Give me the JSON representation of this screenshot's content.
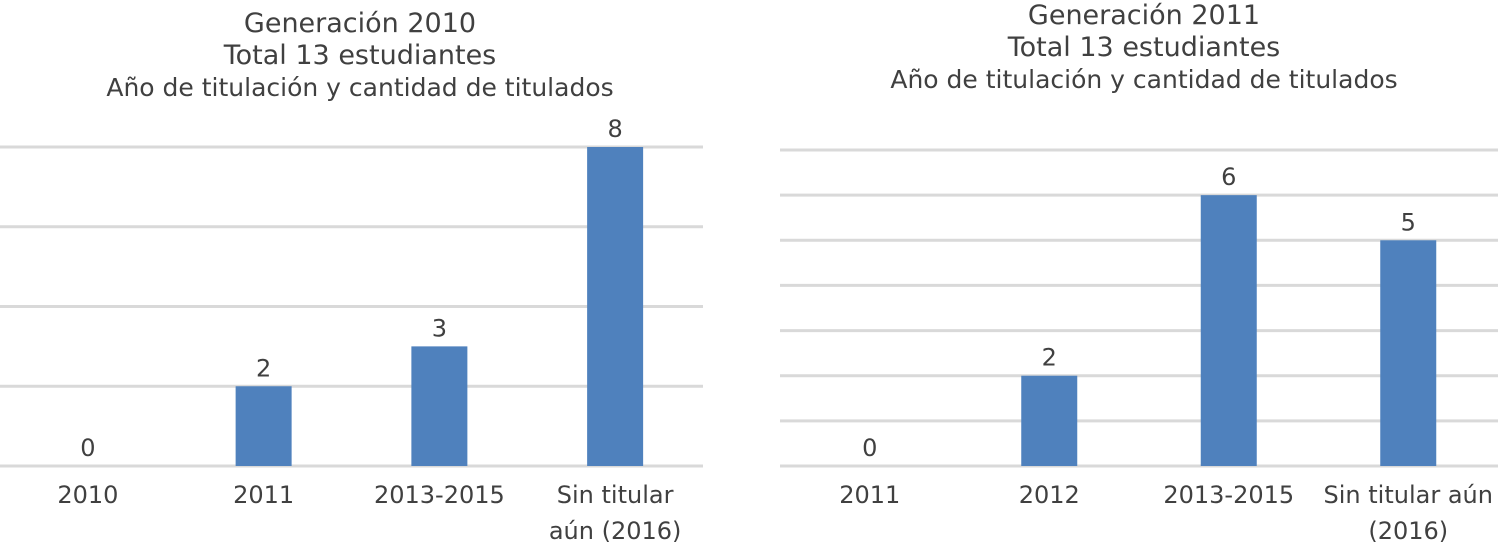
{
  "chart_data": [
    {
      "type": "bar",
      "title": "Generación 2010",
      "subtitle": "Total 13 estudiantes",
      "subtitle2": "Año de titulación y cantidad de titulados",
      "categories": [
        "2010",
        "2011",
        "2013-2015",
        "Sin titular aún (2016)"
      ],
      "category_lines": [
        [
          "2010"
        ],
        [
          "2011"
        ],
        [
          "2013-2015"
        ],
        [
          "Sin titular",
          "aún (2016)"
        ]
      ],
      "values": [
        0,
        2,
        3,
        8
      ],
      "ylim": [
        0,
        8
      ],
      "gridlines": [
        0,
        2,
        4,
        6,
        8
      ],
      "grid": true,
      "bar_color": "#4f81bd"
    },
    {
      "type": "bar",
      "title": "Generación 2011",
      "subtitle": "Total 13 estudiantes",
      "subtitle2": "Año de titulación y cantidad de titulados",
      "categories": [
        "2011",
        "2012",
        "2013-2015",
        "Sin titular aún (2016)"
      ],
      "category_lines": [
        [
          "2011"
        ],
        [
          "2012"
        ],
        [
          "2013-2015"
        ],
        [
          "Sin titular aún",
          "(2016)"
        ]
      ],
      "values": [
        0,
        2,
        6,
        5
      ],
      "ylim": [
        0,
        7
      ],
      "gridlines": [
        0,
        1,
        2,
        3,
        4,
        5,
        6,
        7
      ],
      "grid": true,
      "bar_color": "#4f81bd"
    }
  ]
}
